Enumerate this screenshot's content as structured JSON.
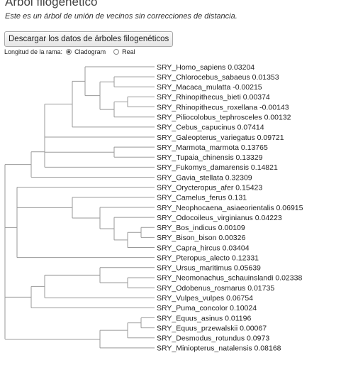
{
  "header": {
    "title": "Árbol filogenético",
    "subtitle": "Este es un árbol de unión de vecinos sin correcciones de distancia."
  },
  "download_button": {
    "label": "Descargar los datos de árboles filogenéticos"
  },
  "branch_length": {
    "label": "Longitud de la rama:",
    "options": [
      {
        "label": "Cladogram",
        "selected": true
      },
      {
        "label": "Real",
        "selected": false
      }
    ]
  },
  "tree": {
    "leaves": [
      "SRY_Homo_sapiens 0.03204",
      "SRY_Chlorocebus_sabaeus 0.01353",
      "SRY_Macaca_mulatta -0.00215",
      "SRY_Rhinopithecus_bieti 0.00374",
      "SRY_Rhinopithecus_roxellana -0.00143",
      "SRY_Piliocolobus_tephrosceles 0.00132",
      "SRY_Cebus_capucinus 0.07414",
      "SRY_Galeopterus_variegatus 0.09721",
      "SRY_Marmota_marmota 0.13765",
      "SRY_Tupaia_chinensis 0.13329",
      "SRY_Fukomys_damarensis 0.14821",
      "SRY_Gavia_stellata 0.32309",
      "SRY_Orycteropus_afer 0.15423",
      "SRY_Camelus_ferus 0.131",
      "SRY_Neophocaena_asiaeorientalis 0.06915",
      "SRY_Odocoileus_virginianus 0.04223",
      "SRY_Bos_indicus 0.00109",
      "SRY_Bison_bison 0.00326",
      "SRY_Capra_hircus 0.03404",
      "SRY_Pteropus_alecto 0.12331",
      "SRY_Ursus_maritimus 0.05639",
      "SRY_Neomonachus_schauinslandi 0.02338",
      "SRY_Odobenus_rosmarus 0.01735",
      "SRY_Vulpes_vulpes 0.06754",
      "SRY_Puma_concolor 0.10024",
      "SRY_Equus_asinus 0.01196",
      "SRY_Equus_przewalskii 0.00067",
      "SRY_Desmodus_rotundus 0.0973",
      "SRY_Miniopterus_natalensis 0.08168"
    ]
  }
}
